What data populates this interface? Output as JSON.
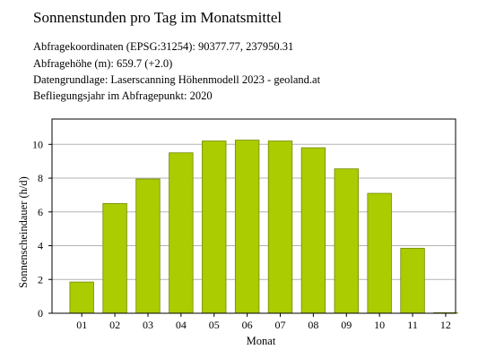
{
  "header": {
    "title": "Sonnenstunden pro Tag im Monatsmittel",
    "info_lines": [
      "Abfragekoordinaten (EPSG:31254): 90377.77, 237950.31",
      "Abfragehöhe (m): 659.7 (+2.0)",
      "Datengrundlage: Laserscanning Höhenmodell 2023 - geoland.at",
      "Befliegungsjahr im Abfragepunkt: 2020"
    ]
  },
  "colors": {
    "bar_fill": "#aacc00",
    "bar_stroke": "#6f8a00",
    "grid": "#b3b3b3",
    "axis": "#000000"
  },
  "chart_data": {
    "type": "bar",
    "title": "Sonnenstunden pro Tag im Monatsmittel",
    "xlabel": "Monat",
    "ylabel": "Sonnenscheindauer (h/d)",
    "categories": [
      "01",
      "02",
      "03",
      "04",
      "05",
      "06",
      "07",
      "08",
      "09",
      "10",
      "11",
      "12"
    ],
    "values": [
      1.85,
      6.5,
      7.95,
      9.5,
      10.2,
      10.25,
      10.2,
      9.8,
      8.55,
      7.1,
      3.85,
      0.0
    ],
    "ylim": [
      0,
      11.5
    ],
    "yticks": [
      0,
      2,
      4,
      6,
      8,
      10
    ],
    "grid": true,
    "legend": "none"
  }
}
